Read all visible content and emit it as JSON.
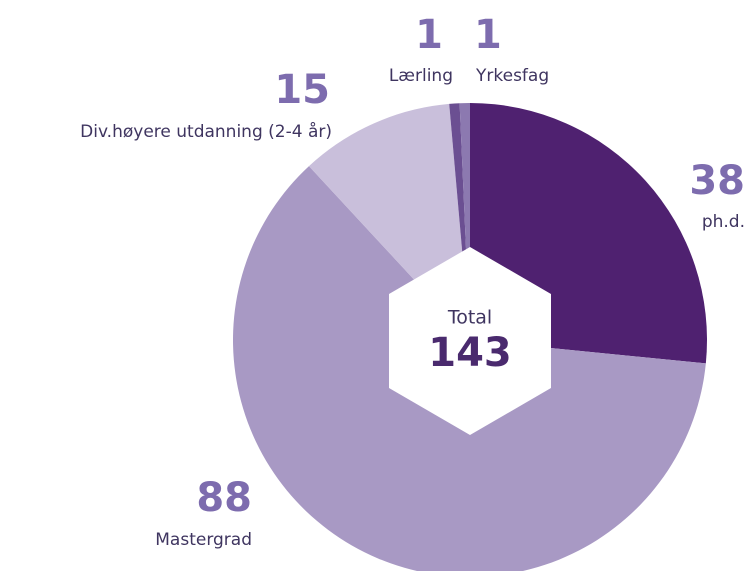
{
  "chart_data": {
    "type": "pie",
    "categories": [
      "ph.d.",
      "Mastergrad",
      "Div.høyere utdanning (2-4 år)",
      "Lærling",
      "Yrkesfag"
    ],
    "values": [
      38,
      88,
      15,
      1,
      1
    ],
    "colors": [
      "#4f2170",
      "#a899c4",
      "#c9bfdb",
      "#6b4f92",
      "#8c79b0"
    ],
    "total_label": "Total",
    "total": 143
  }
}
